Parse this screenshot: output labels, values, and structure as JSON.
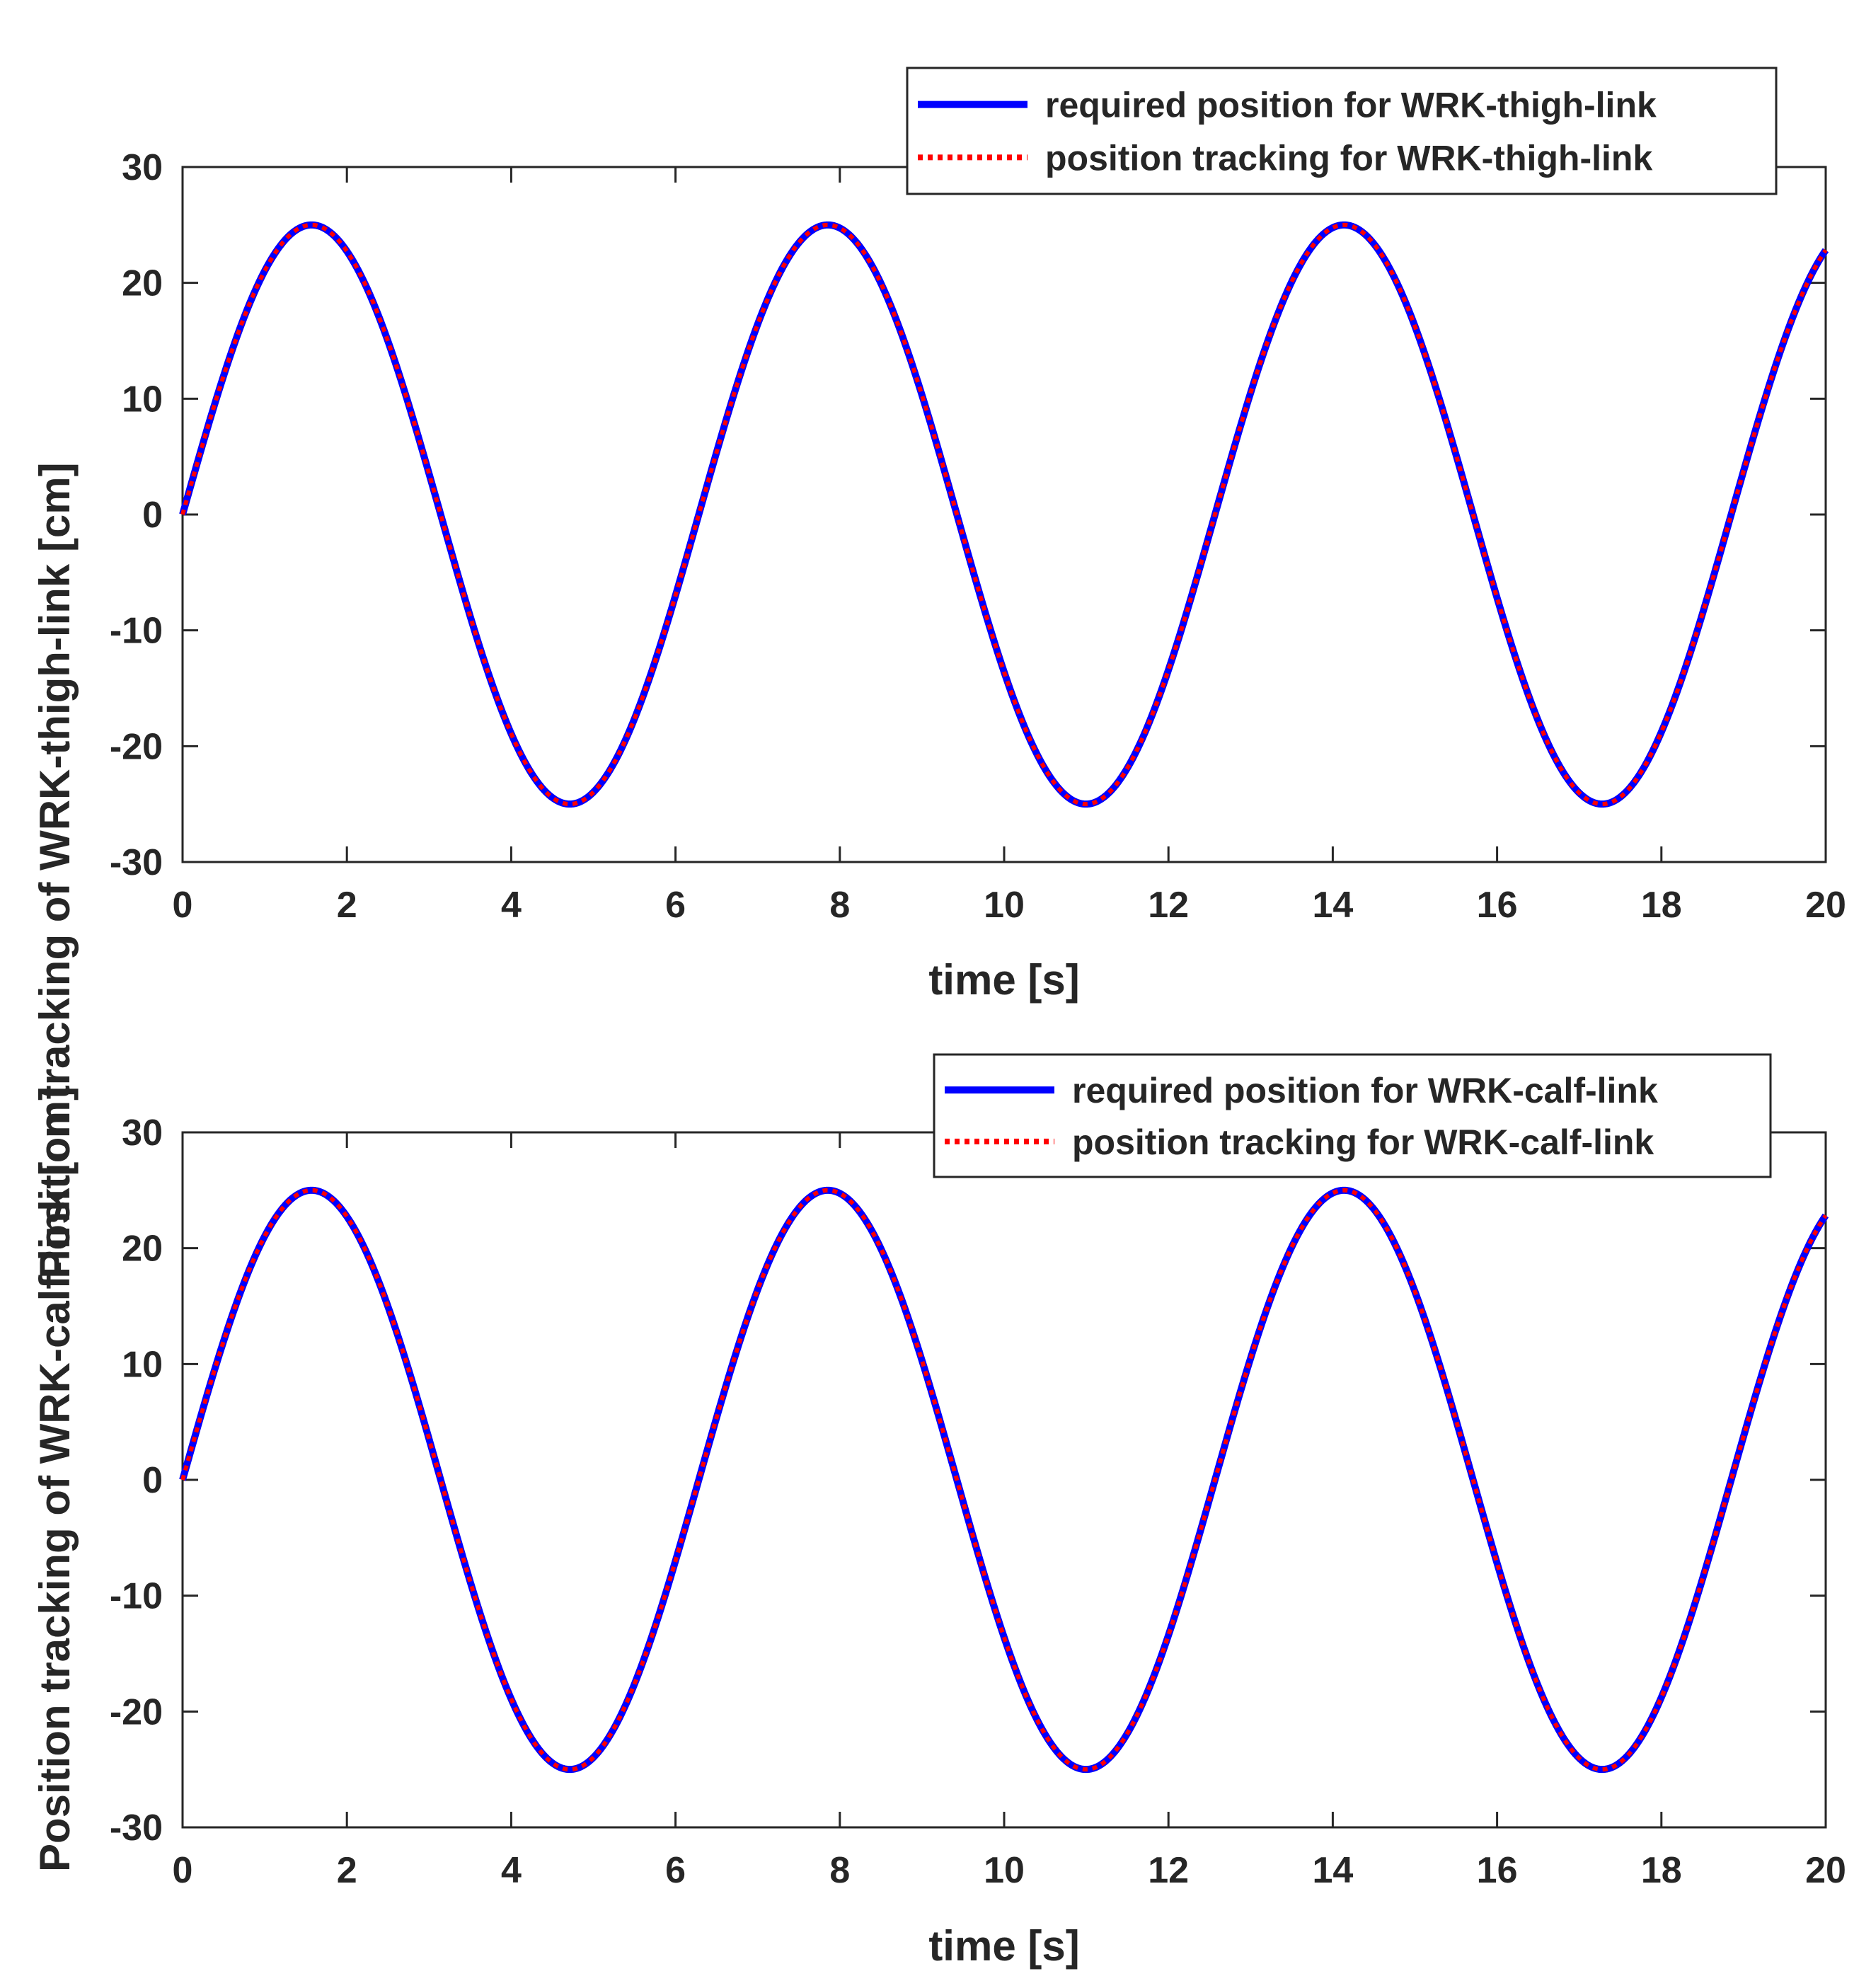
{
  "chart_data": [
    {
      "type": "line",
      "xlabel": "time [s]",
      "ylabel": "Position tracking of WRK-thigh-link [cm]",
      "xlim": [
        0,
        20
      ],
      "ylim": [
        -30,
        30
      ],
      "xticks": [
        0,
        2,
        4,
        6,
        8,
        10,
        12,
        14,
        16,
        18,
        20
      ],
      "yticks": [
        -30,
        -20,
        -10,
        0,
        10,
        20,
        30
      ],
      "grid": false,
      "legend_position": "top-right",
      "x": [
        0,
        1.57,
        4.71,
        7.85,
        11.0,
        14.14,
        17.28,
        20
      ],
      "series": [
        {
          "name": "required position for WRK-thigh-link",
          "color": "#0000ff",
          "style": "solid",
          "function": "25*sin(t)",
          "values": [
            0,
            25,
            -25,
            25,
            -25,
            25,
            -25,
            22.8
          ]
        },
        {
          "name": "position tracking for WRK-thigh-link",
          "color": "#ff0000",
          "style": "dotted",
          "function": "25*sin(t)",
          "values": [
            0,
            25,
            -25,
            25,
            -25,
            25,
            -25,
            22.8
          ]
        }
      ]
    },
    {
      "type": "line",
      "xlabel": "time [s]",
      "ylabel": "Position tracking of WRK-calf-link [cm]",
      "xlim": [
        0,
        20
      ],
      "ylim": [
        -30,
        30
      ],
      "xticks": [
        0,
        2,
        4,
        6,
        8,
        10,
        12,
        14,
        16,
        18,
        20
      ],
      "yticks": [
        -30,
        -20,
        -10,
        0,
        10,
        20,
        30
      ],
      "grid": false,
      "legend_position": "top-right",
      "x": [
        0,
        1.57,
        4.71,
        7.85,
        11.0,
        14.14,
        17.28,
        20
      ],
      "series": [
        {
          "name": "required position for WRK-calf-link",
          "color": "#0000ff",
          "style": "solid",
          "function": "25*sin(t)",
          "values": [
            0,
            25,
            -25,
            25,
            -25,
            25,
            -25,
            22.8
          ]
        },
        {
          "name": "position tracking for WRK-calf-link",
          "color": "#ff0000",
          "style": "dotted",
          "function": "25*sin(t)",
          "values": [
            0,
            25,
            -25,
            25,
            -25,
            25,
            -25,
            22.8
          ]
        }
      ]
    }
  ]
}
